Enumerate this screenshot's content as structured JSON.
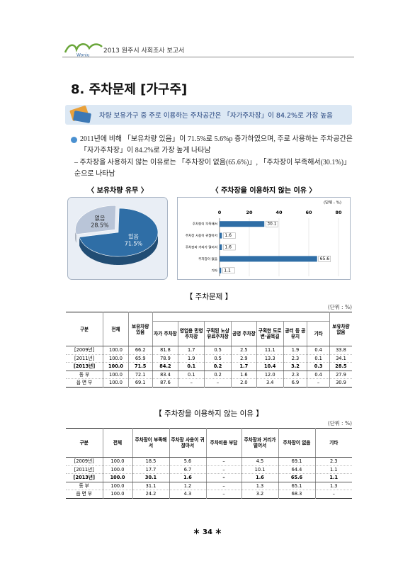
{
  "header": {
    "logo": "Wonju",
    "title": "2013 원주시 사회조사 보고서"
  },
  "section_title": "8. 주차문제 [가구주]",
  "highlight": "차량 보유가구 중 주로 이용하는 주차공간은 「자가주차장」이 84.2%로 가장 높음",
  "bullets": [
    "2011년에 비해 「보유차량 있음」이 71.5%로 5.6%p 증가하였으며, 주로 사용하는 주차공간은 「자가주차장」이 84.2%로 가장 높게 나타남",
    "– 주차장을 사용하지 않는 이유로는 「주차장이 없음(65.6%)」, 「주차장이 부족해서(30.1%)」 순으로 나타남"
  ],
  "pie_chart": {
    "type": "pie",
    "title": "〈 보유차량 유무 〉",
    "categories": [
      "없음",
      "있음"
    ],
    "values": [
      28.5,
      71.5
    ],
    "value_labels": [
      "28.5%",
      "71.5%"
    ],
    "colors": [
      "#b9c5d8",
      "#2f6ea6"
    ]
  },
  "bar_chart": {
    "type": "bar",
    "title": "〈 주차장을 이용하지 않는 이유 〉",
    "unit": "(단위 : %)",
    "categories": [
      "주차장이 부족해서",
      "주차장 사용이 귀찮아서",
      "주차장과 거리가 멀어서",
      "주차장이 없음",
      "기타"
    ],
    "values": [
      30.1,
      1.6,
      1.6,
      65.6,
      1.1
    ],
    "color": "#2f6ea6",
    "xlim": [
      0,
      80
    ],
    "xticks": [
      0,
      20,
      40,
      60,
      80
    ],
    "grid": true
  },
  "table1": {
    "title": "【 주차문제 】",
    "unit": "(단위 : %)",
    "columns": [
      "구분",
      "전체",
      "보유차량 있음",
      "보유차량 없음"
    ],
    "subcolumns": [
      "자가 주차장",
      "영업용 민영 주차장",
      "구획된 노상유료주차장",
      "공영 주차장",
      "구획한 도로변·골목길",
      "공터 등 공유지",
      "기타"
    ],
    "rows": [
      [
        "[2009년]",
        "100.0",
        "66.2",
        "81.8",
        "1.7",
        "0.5",
        "2.5",
        "11.1",
        "1.9",
        "0.4",
        "33.8"
      ],
      [
        "[2011년]",
        "100.0",
        "65.9",
        "78.9",
        "1.9",
        "0.5",
        "2.9",
        "13.3",
        "2.3",
        "0.1",
        "34.1"
      ],
      [
        "[2013년]",
        "100.0",
        "71.5",
        "84.2",
        "0.1",
        "0.2",
        "1.7",
        "10.4",
        "3.2",
        "0.3",
        "28.5"
      ],
      [
        "동 부",
        "100.0",
        "72.1",
        "83.4",
        "0.1",
        "0.2",
        "1.6",
        "12.0",
        "2.3",
        "0.4",
        "27.9"
      ],
      [
        "읍 면 부",
        "100.0",
        "69.1",
        "87.6",
        "–",
        "–",
        "2.0",
        "3.4",
        "6.9",
        "–",
        "30.9"
      ]
    ]
  },
  "table2": {
    "title": "【 주차장을 이용하지 않는 이유 】",
    "unit": "(단위 : %)",
    "columns": [
      "구분",
      "전체",
      "주차장이 부족해서",
      "주차장 사용이 귀찮아서",
      "주차비용 부담",
      "주차장과 거리가 멀어서",
      "주차장이 없음",
      "기타"
    ],
    "rows": [
      [
        "[2009년]",
        "100.0",
        "18.5",
        "5.6",
        "–",
        "4.5",
        "69.1",
        "2.3"
      ],
      [
        "[2011년]",
        "100.0",
        "17.7",
        "6.7",
        "–",
        "10.1",
        "64.4",
        "1.1"
      ],
      [
        "[2013년]",
        "100.0",
        "30.1",
        "1.6",
        "–",
        "1.6",
        "65.6",
        "1.1"
      ],
      [
        "동 부",
        "100.0",
        "31.1",
        "1.2",
        "–",
        "1.3",
        "65.1",
        "1.3"
      ],
      [
        "읍 면 부",
        "100.0",
        "24.2",
        "4.3",
        "–",
        "3.2",
        "68.3",
        "–"
      ]
    ]
  },
  "page_number": "＊ 34 ＊"
}
